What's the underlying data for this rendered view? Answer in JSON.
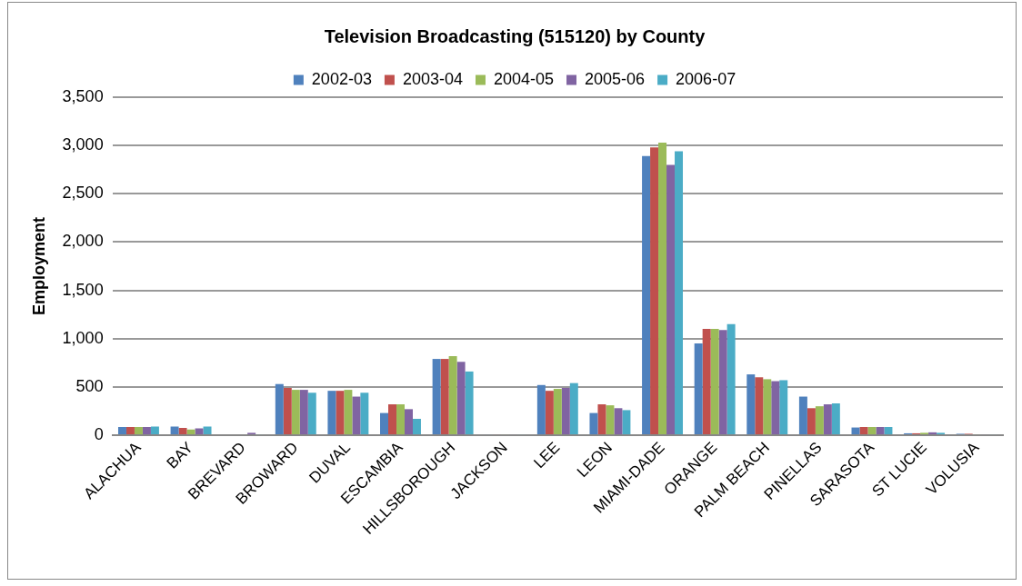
{
  "chart_data": {
    "type": "bar",
    "title": "Television Broadcasting (515120) by County",
    "ylabel": "Employment",
    "categories": [
      "ALACHUA",
      "BAY",
      "BREVARD",
      "BROWARD",
      "DUVAL",
      "ESCAMBIA",
      "HILLSBOROUGH",
      "JACKSON",
      "LEE",
      "LEON",
      "MIAMI-DADE",
      "ORANGE",
      "PALM BEACH",
      "PINELLAS",
      "SARASOTA",
      "ST LUCIE",
      "VOLUSIA"
    ],
    "series": [
      {
        "name": "2002-03",
        "color": "#4f81bd",
        "values": [
          85,
          90,
          10,
          530,
          460,
          230,
          790,
          10,
          520,
          230,
          2890,
          950,
          630,
          400,
          80,
          20,
          15
        ]
      },
      {
        "name": "2003-04",
        "color": "#c0504d",
        "values": [
          85,
          75,
          0,
          490,
          460,
          320,
          790,
          10,
          460,
          320,
          2980,
          1100,
          600,
          280,
          85,
          20,
          15
        ]
      },
      {
        "name": "2004-05",
        "color": "#9bbb59",
        "values": [
          85,
          60,
          0,
          470,
          470,
          320,
          820,
          10,
          480,
          310,
          3030,
          1100,
          580,
          300,
          85,
          25,
          10
        ]
      },
      {
        "name": "2005-06",
        "color": "#8064a2",
        "values": [
          85,
          70,
          25,
          470,
          400,
          270,
          760,
          10,
          490,
          280,
          2800,
          1090,
          560,
          320,
          85,
          30,
          10
        ]
      },
      {
        "name": "2006-07",
        "color": "#4bacc6",
        "values": [
          90,
          90,
          10,
          440,
          440,
          170,
          660,
          10,
          540,
          260,
          2940,
          1150,
          570,
          330,
          85,
          25,
          10
        ]
      }
    ],
    "ylim": [
      0,
      3500
    ],
    "yticks": [
      {
        "value": 0,
        "label": "0"
      },
      {
        "value": 500,
        "label": "500"
      },
      {
        "value": 1000,
        "label": "1,000"
      },
      {
        "value": 1500,
        "label": "1,500"
      },
      {
        "value": 2000,
        "label": "2,000"
      },
      {
        "value": 2500,
        "label": "2,500"
      },
      {
        "value": 3000,
        "label": "3,000"
      },
      {
        "value": 3500,
        "label": "3,500"
      }
    ],
    "grid": "y",
    "legend": "top"
  }
}
